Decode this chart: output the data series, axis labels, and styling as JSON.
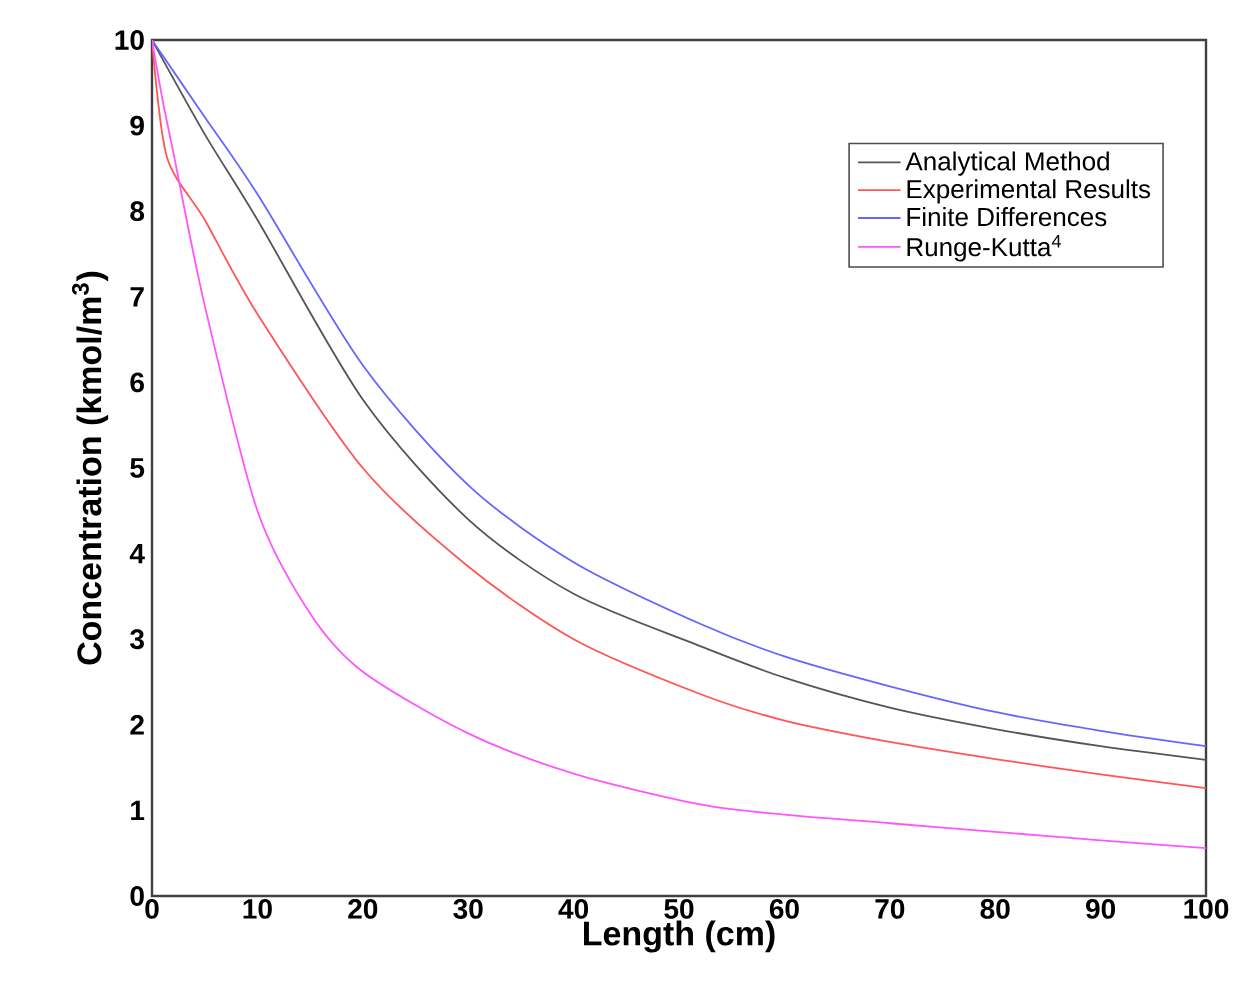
{
  "chart_data": {
    "type": "line",
    "xlabel": "Length (cm)",
    "ylabel": "Concentration (kmol/m$^{3}$)",
    "xlim": [
      0,
      100
    ],
    "ylim": [
      0,
      10
    ],
    "xticks": [
      0,
      10,
      20,
      30,
      40,
      50,
      60,
      70,
      80,
      90,
      100
    ],
    "yticks": [
      0,
      1,
      2,
      3,
      4,
      5,
      6,
      7,
      8,
      9,
      10
    ],
    "grid": false,
    "legend": "top right",
    "marker": "none",
    "line_style": "solid",
    "series": [
      {
        "name": "Analytical Method",
        "color": "#555555",
        "x": [
          0,
          5,
          10,
          20,
          30,
          40,
          52,
          60,
          70,
          80,
          90,
          100
        ],
        "values": [
          10,
          8.9,
          7.9,
          5.8,
          4.4,
          3.53,
          2.92,
          2.55,
          2.2,
          1.95,
          1.75,
          1.59
        ]
      },
      {
        "name": "Experimental Results",
        "color": "#ff5555",
        "x": [
          0,
          1.4,
          5,
          10,
          20,
          30,
          40,
          52,
          60,
          70,
          80,
          90,
          100
        ],
        "values": [
          10,
          8.64,
          7.9,
          6.8,
          5.0,
          3.85,
          3.0,
          2.36,
          2.05,
          1.8,
          1.6,
          1.42,
          1.26
        ]
      },
      {
        "name": "Finite Differences",
        "color": "#6666ff",
        "x": [
          0,
          5,
          10,
          20,
          30,
          40,
          52,
          60,
          70,
          80,
          90,
          100
        ],
        "values": [
          10,
          9.1,
          8.2,
          6.2,
          4.8,
          3.9,
          3.18,
          2.8,
          2.45,
          2.15,
          1.93,
          1.75
        ]
      },
      {
        "name": "Runge-Kutta$^{4}$",
        "color": "#ff55ff",
        "x": [
          0,
          1,
          2,
          5,
          10,
          15,
          20,
          30,
          40,
          52,
          60,
          70,
          80,
          90,
          100
        ],
        "values": [
          10,
          9.3,
          8.7,
          6.9,
          4.5,
          3.3,
          2.62,
          1.9,
          1.43,
          1.07,
          0.95,
          0.85,
          0.75,
          0.65,
          0.56
        ]
      }
    ]
  }
}
